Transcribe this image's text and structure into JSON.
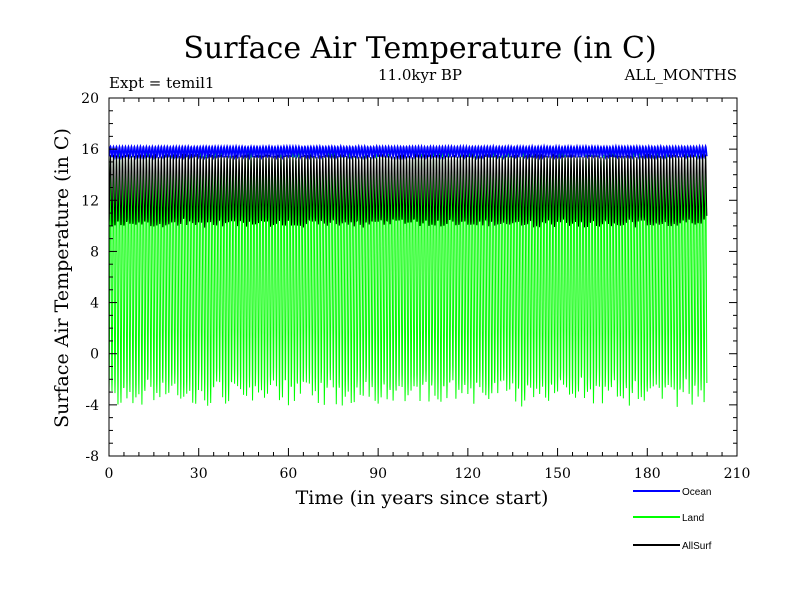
{
  "chart_data": {
    "type": "line",
    "title": "Surface Air Temperature (in C)",
    "subtitle": "11.0kyr BP",
    "experiment_label": "Expt = temil1",
    "months_label": "ALL_MONTHS",
    "xlabel": "Time (in years since start)",
    "ylabel": "Surface Air Temperature (in C)",
    "xlim": [
      0,
      210
    ],
    "ylim": [
      -8,
      20
    ],
    "xticks": [
      0,
      30,
      60,
      90,
      120,
      150,
      180,
      210
    ],
    "yticks": [
      -8,
      -4,
      0,
      4,
      8,
      12,
      16,
      20
    ],
    "x_range_of_data": [
      0,
      200
    ],
    "cycles_per_year": 1,
    "series": [
      {
        "name": "Ocean",
        "color": "#0000ff",
        "seasonal_min": 15.4,
        "seasonal_max": 16.2
      },
      {
        "name": "Land",
        "color": "#00ff00",
        "seasonal_min": -3.0,
        "seasonal_max": 15.4
      },
      {
        "name": "AllSurf",
        "color": "#000000",
        "seasonal_min": 10.2,
        "seasonal_max": 15.5
      }
    ],
    "legend_position": "bottom-right"
  }
}
